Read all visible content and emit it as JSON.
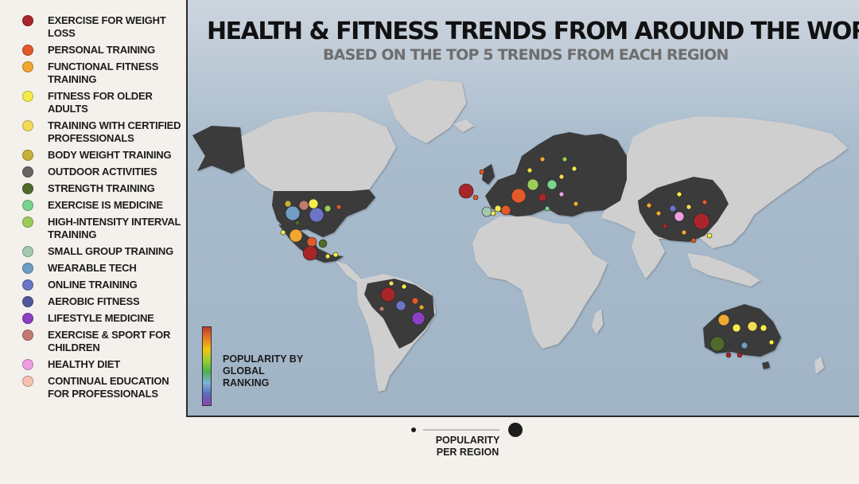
{
  "title": "HEALTH & FITNESS TRENDS FROM AROUND THE WORLD",
  "subtitle": "BASED ON THE TOP 5 TRENDS FROM EACH REGION",
  "legend": [
    {
      "label": "EXERCISE FOR WEIGHT LOSS",
      "color": "#a8262a"
    },
    {
      "label": "PERSONAL TRAINING",
      "color": "#e2592a"
    },
    {
      "label": "FUNCTIONAL FITNESS TRAINING",
      "color": "#f0a830"
    },
    {
      "label": "FITNESS FOR OLDER ADULTS",
      "color": "#f5ec4a"
    },
    {
      "label": "TRAINING WITH CERTIFIED PROFESSIONALS",
      "color": "#f2dc55"
    },
    {
      "label": "BODY WEIGHT TRAINING",
      "color": "#c8b03a"
    },
    {
      "label": "OUTDOOR ACTIVITIES",
      "color": "#6a6464"
    },
    {
      "label": "STRENGTH TRAINING",
      "color": "#4f6b2c"
    },
    {
      "label": "EXERCISE IS MEDICINE",
      "color": "#79d48f"
    },
    {
      "label": "HIGH-INTENSITY INTERVAL TRAINING",
      "color": "#9ccc5a"
    },
    {
      "label": "SMALL GROUP TRAINING",
      "color": "#a4c8b0"
    },
    {
      "label": "WEARABLE TECH",
      "color": "#6f9ec2"
    },
    {
      "label": "ONLINE TRAINING",
      "color": "#6c74c6"
    },
    {
      "label": "AEROBIC FITNESS",
      "color": "#4e5a9c"
    },
    {
      "label": "LIFESTYLE MEDICINE",
      "color": "#8a3fc4"
    },
    {
      "label": "EXERCISE & SPORT FOR CHILDREN",
      "color": "#c27a70"
    },
    {
      "label": "HEALTHY DIET",
      "color": "#ee9ee0"
    },
    {
      "label": "CONTINUAL EDUCATION FOR PROFESSIONALS",
      "color": "#f7c2b0"
    }
  ],
  "popularity_scale": {
    "label": "POPULARITY BY GLOBAL RANKING"
  },
  "size_scale": {
    "label": "POPULARITY PER REGION"
  },
  "colors": {
    "ocean": "#a9bccd",
    "land": "#cfcfcf",
    "highlight": "#3a3a3a"
  }
}
